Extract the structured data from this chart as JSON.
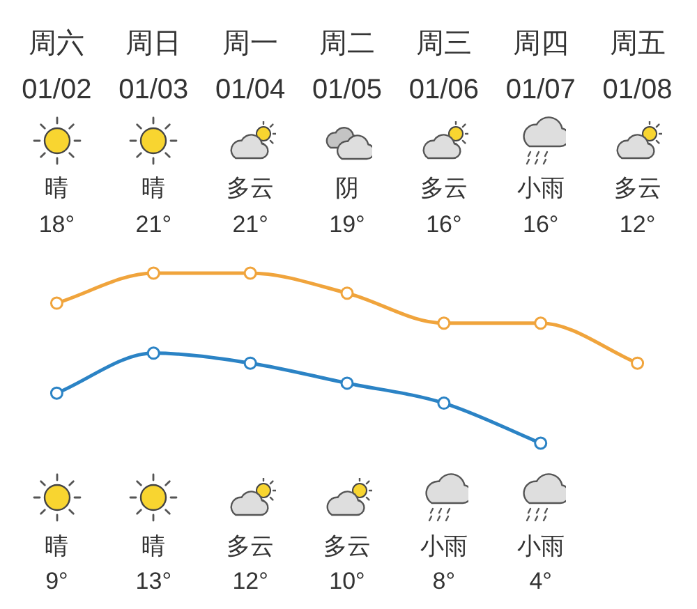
{
  "chart_data": {
    "type": "line",
    "categories": [
      "周六\n01/02",
      "周日\n01/03",
      "周一\n01/04",
      "周二\n01/05",
      "周三\n01/06",
      "周四\n01/07",
      "周五\n01/08"
    ],
    "series": [
      {
        "color": "#f0a43c",
        "values": [
          18,
          21,
          21,
          19,
          16,
          16,
          12
        ],
        "value_labels": [
          "18°",
          "21°",
          "21°",
          "19°",
          "16°",
          "16°",
          "12°"
        ]
      },
      {
        "color": "#2b83c5",
        "values": [
          9,
          13,
          12,
          10,
          8,
          4,
          null
        ],
        "value_labels": [
          "9°",
          "13°",
          "12°",
          "10°",
          "8°",
          "4°",
          null
        ]
      }
    ],
    "annotations": [
      "晴",
      "晴",
      "多云",
      "阴",
      "多云",
      "小雨",
      "多云",
      "晴",
      "晴",
      "多云",
      "多云",
      "小雨",
      "小雨"
    ],
    "marker": "circle",
    "line_style": "solid"
  }
}
